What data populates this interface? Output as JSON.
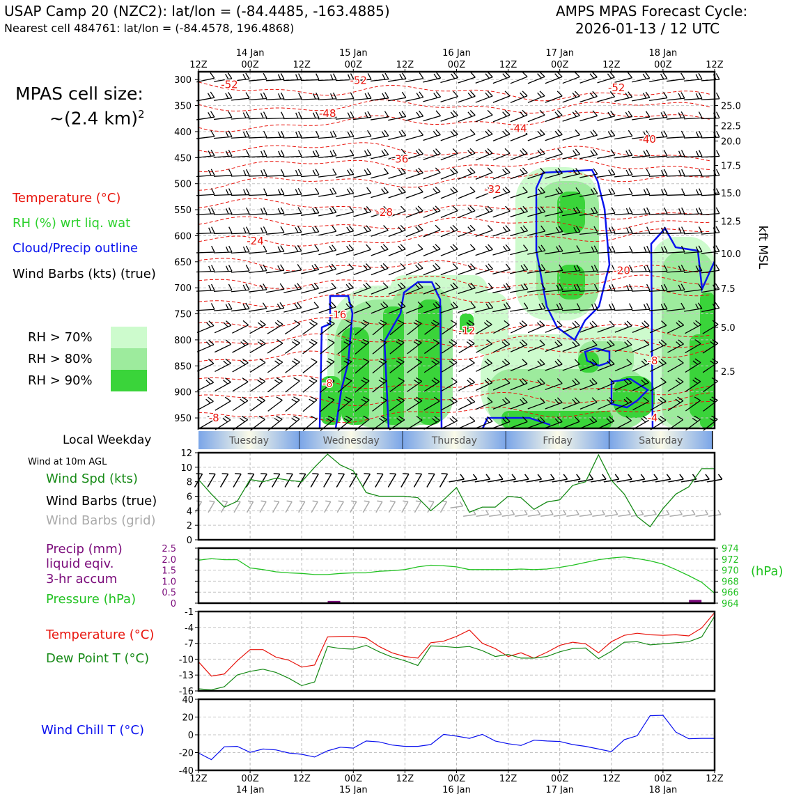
{
  "header": {
    "title_line1": "USAP Camp 20 (NZC2): lat/lon = (-84.4485, -163.4885)",
    "title_line2": "Nearest cell 484761: lat/lon = (-84.4578, 196.4868)",
    "right_line1": "AMPS MPAS Forecast Cycle:",
    "right_line2": "2026-01-13 / 12 UTC"
  },
  "left_panel": {
    "cell_size_label": "MPAS cell size:",
    "cell_size_value": "~(2.4 km)",
    "cell_size_exp": "2",
    "legend_temperature": "Temperature (°C)",
    "legend_rh": "RH (%) wrt liq. wat",
    "legend_cloud": "Cloud/Precip outline",
    "legend_barbs": "Wind Barbs (kts) (true)",
    "rh_70": "RH > 70%",
    "rh_80": "RH > 80%",
    "rh_90": "RH > 90%",
    "local_weekday": "Local Weekday",
    "wind_10m": "Wind at 10m AGL",
    "wind_spd_label": "Wind Spd (kts)",
    "wind_barbs_true": "Wind Barbs (true)",
    "wind_barbs_grid": "Wind Barbs (grid)",
    "precip_l1": "Precip (mm)",
    "precip_l2": "liquid eqiv.",
    "precip_l3": "3-hr accum",
    "pressure_label": "Pressure (hPa)",
    "temp_label": "Temperature (°C)",
    "dew_label": "Dew Point T (°C)",
    "chill_label": "Wind Chill T (°C)"
  },
  "colors": {
    "temperature": "#e8140c",
    "rh_green": "#2ed12e",
    "rh_70": "#cdfbcd",
    "rh_80": "#9deb9d",
    "rh_90": "#3ad43a",
    "cloud": "#0a14ee",
    "wind_spd": "#168a16",
    "grid_barb": "#aaaaaa",
    "precip": "#7a0a7a",
    "pressure": "#22c222",
    "dewpoint": "#168a16",
    "windchill": "#0a10ee"
  },
  "chart_data": [
    {
      "type": "heatmap",
      "name": "cross-section",
      "time_ticks_top": [
        "12Z",
        "00Z",
        "12Z",
        "00Z",
        "12Z",
        "00Z",
        "12Z",
        "00Z",
        "12Z",
        "00Z",
        "12Z"
      ],
      "date_ticks_top": [
        "14 Jan",
        "15 Jan",
        "16 Jan",
        "17 Jan",
        "18 Jan"
      ],
      "time_ticks_bottom": [
        "12Z",
        "00Z",
        "12Z",
        "00Z",
        "12Z",
        "00Z",
        "12Z",
        "00Z",
        "12Z",
        "00Z",
        "12Z"
      ],
      "date_ticks_bottom": [
        "14 Jan",
        "15 Jan",
        "16 Jan",
        "17 Jan",
        "18 Jan"
      ],
      "pressure_ticks": [
        300,
        350,
        400,
        450,
        500,
        550,
        600,
        650,
        700,
        750,
        800,
        850,
        900,
        950
      ],
      "ylim": [
        970,
        285
      ],
      "height_ticks": [
        "25.0",
        "22.5",
        "20.0",
        "17.5",
        "15.0",
        "12.5",
        "10.0",
        "7.5",
        "5.0",
        "2.5"
      ],
      "height_tick_pressures": [
        350,
        389,
        418,
        465,
        518,
        572,
        634,
        701,
        776,
        860
      ],
      "ylabel_right": "kft MSL",
      "temperature_labels": [
        {
          "text": "-52",
          "t": 6,
          "p": 310
        },
        {
          "text": "-52",
          "t": 31,
          "p": 302
        },
        {
          "text": "-52",
          "t": 81,
          "p": 316
        },
        {
          "text": "-48",
          "t": 25,
          "p": 365
        },
        {
          "text": "-44",
          "t": 62,
          "p": 394
        },
        {
          "text": "-40",
          "t": 87,
          "p": 415
        },
        {
          "text": "-36",
          "t": 39,
          "p": 453
        },
        {
          "text": "-32",
          "t": 57,
          "p": 511
        },
        {
          "text": "-28",
          "t": 36,
          "p": 555
        },
        {
          "text": "-24",
          "t": 11,
          "p": 610
        },
        {
          "text": "-20",
          "t": 82,
          "p": 667
        },
        {
          "text": "-16",
          "t": 27,
          "p": 752
        },
        {
          "text": "-12",
          "t": 52,
          "p": 783
        },
        {
          "text": "-8",
          "t": 25,
          "p": 884
        },
        {
          "text": "-8",
          "t": 3,
          "p": 950
        },
        {
          "text": "-8",
          "t": 88,
          "p": 840
        },
        {
          "text": "-4",
          "t": 88,
          "p": 950
        }
      ]
    },
    {
      "type": "line",
      "name": "wind-speed",
      "x_hours": [
        0,
        3,
        6,
        9,
        12,
        15,
        18,
        21,
        24,
        27,
        30,
        33,
        36,
        39,
        42,
        45,
        48,
        51,
        54,
        57,
        60,
        63,
        66,
        69,
        72,
        75,
        78,
        81,
        84,
        87,
        90,
        93,
        96,
        99,
        102,
        105,
        108,
        111,
        114,
        117,
        120
      ],
      "values": [
        8.3,
        6.3,
        4.5,
        5.3,
        8.3,
        8.0,
        8.5,
        8.2,
        8.0,
        10.0,
        11.8,
        10.3,
        9.5,
        6.5,
        6.0,
        6.0,
        6.0,
        5.8,
        4.0,
        5.5,
        7.2,
        3.8,
        4.5,
        4.5,
        6.0,
        5.8,
        4.2,
        5.2,
        5.5,
        7.5,
        8.0,
        11.7,
        8.2,
        6.3,
        3.2,
        1.8,
        4.3,
        6.3,
        7.3,
        9.8,
        9.8
      ],
      "ylim": [
        0,
        12
      ],
      "y_ticks": [
        0,
        2,
        4,
        6,
        8,
        10,
        12
      ]
    },
    {
      "type": "bar",
      "name": "precip",
      "x_hours": [
        31.5,
        115.5
      ],
      "values": [
        0.1,
        0.15
      ],
      "ylim": [
        0,
        2.5
      ],
      "y_ticks": [
        "0",
        "0.5",
        "1.0",
        "1.5",
        "2.0",
        "2.5"
      ]
    },
    {
      "type": "line",
      "name": "pressure",
      "x_hours": [
        0,
        3,
        6,
        9,
        12,
        15,
        18,
        21,
        24,
        27,
        30,
        33,
        36,
        39,
        42,
        45,
        48,
        51,
        54,
        57,
        60,
        63,
        66,
        69,
        72,
        75,
        78,
        81,
        84,
        87,
        90,
        93,
        96,
        99,
        102,
        105,
        108,
        111,
        114,
        117,
        120
      ],
      "values": [
        971.8,
        972.1,
        971.9,
        971.9,
        970.4,
        970.1,
        969.7,
        969.5,
        969.4,
        969.2,
        969.2,
        969.4,
        969.5,
        969.5,
        969.8,
        969.9,
        970.1,
        970.6,
        970.9,
        970.8,
        970.6,
        970.1,
        970.1,
        970.1,
        970.1,
        970.2,
        970.1,
        970.2,
        970.5,
        970.9,
        971.4,
        971.9,
        972.2,
        972.4,
        972.1,
        971.7,
        971.1,
        970.1,
        969.0,
        967.8,
        965.8
      ],
      "ylim": [
        964,
        974
      ],
      "y_ticks": [
        "964",
        "966",
        "968",
        "970",
        "972",
        "974"
      ],
      "ylabel_right": "(hPa)"
    },
    {
      "type": "line",
      "name": "temperature-dewpoint",
      "x_hours": [
        0,
        3,
        6,
        9,
        12,
        15,
        18,
        21,
        24,
        27,
        30,
        33,
        36,
        39,
        42,
        45,
        48,
        51,
        54,
        57,
        60,
        63,
        66,
        69,
        72,
        75,
        78,
        81,
        84,
        87,
        90,
        93,
        96,
        99,
        102,
        105,
        108,
        111,
        114,
        117,
        120
      ],
      "series": [
        {
          "name": "Temperature (°C)",
          "values": [
            -10.5,
            -13.2,
            -12.8,
            -10.3,
            -8.2,
            -8.2,
            -9.6,
            -10.2,
            -11.5,
            -11.1,
            -5.8,
            -5.7,
            -5.7,
            -6.0,
            -7.6,
            -8.8,
            -9.5,
            -9.8,
            -6.9,
            -6.6,
            -5.7,
            -4.5,
            -7.0,
            -8.0,
            -9.5,
            -8.8,
            -9.8,
            -8.7,
            -7.4,
            -6.8,
            -7.1,
            -8.8,
            -6.7,
            -5.5,
            -5.1,
            -5.4,
            -5.5,
            -5.4,
            -5.6,
            -4.1,
            -1.2
          ]
        },
        {
          "name": "Dew Point T (°C)",
          "values": [
            -15.6,
            -15.8,
            -15.2,
            -13.0,
            -12.3,
            -11.9,
            -12.5,
            -13.6,
            -15.0,
            -14.3,
            -7.6,
            -8.0,
            -8.1,
            -7.4,
            -8.6,
            -9.6,
            -10.3,
            -11.2,
            -7.5,
            -7.6,
            -7.8,
            -7.6,
            -8.4,
            -9.5,
            -9.1,
            -9.8,
            -9.8,
            -9.5,
            -8.6,
            -8.0,
            -7.9,
            -9.9,
            -8.5,
            -6.8,
            -6.7,
            -7.3,
            -7.1,
            -6.9,
            -6.7,
            -5.8,
            -1.9
          ]
        }
      ],
      "ylim": [
        -16,
        -1
      ],
      "y_ticks": [
        "-16",
        "-13",
        "-10",
        "-7",
        "-4",
        "-1"
      ]
    },
    {
      "type": "line",
      "name": "wind-chill",
      "x_hours": [
        0,
        3,
        6,
        9,
        12,
        15,
        18,
        21,
        24,
        27,
        30,
        33,
        36,
        39,
        42,
        45,
        48,
        51,
        54,
        57,
        60,
        63,
        66,
        69,
        72,
        75,
        78,
        81,
        84,
        87,
        90,
        93,
        96,
        99,
        102,
        105,
        108,
        111,
        114,
        117,
        120
      ],
      "values": [
        -20.5,
        -28.0,
        -13.5,
        -13.0,
        -19.8,
        -16.0,
        -17.0,
        -20.5,
        -22.0,
        -25.0,
        -18.0,
        -14.0,
        -15.0,
        -7.0,
        -8.0,
        -11.5,
        -13.0,
        -13.0,
        -11.0,
        0.5,
        -1.5,
        -4.0,
        0.5,
        -7.0,
        -10.0,
        -12.0,
        -6.0,
        -7.0,
        -7.5,
        -11.0,
        -13.0,
        -16.0,
        -19.0,
        -5.5,
        -1.0,
        21.5,
        22.0,
        3.0,
        -4.5,
        -4.0,
        -4.0
      ],
      "ylim": [
        -40,
        40
      ],
      "y_ticks": [
        "-40",
        "-20",
        "0",
        "20",
        "40"
      ]
    }
  ],
  "weekdays": [
    "Tuesday",
    "Wednesday",
    "Thursday",
    "Friday",
    "Saturday"
  ]
}
